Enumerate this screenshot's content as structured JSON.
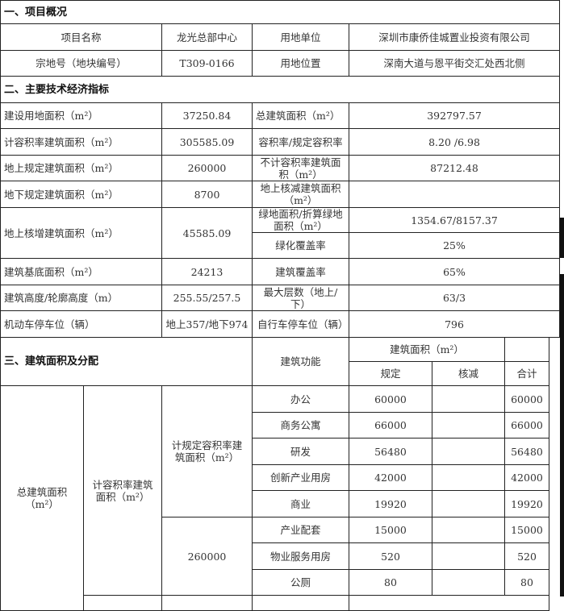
{
  "section1": {
    "title": "一、项目概况",
    "rows": [
      [
        "项目名称",
        "龙光总部中心",
        "用地单位",
        "深圳市康侨佳城置业投资有限公司"
      ],
      [
        "宗地号（地块编号）",
        "T309-0166",
        "用地位置",
        "深南大道与恩平街交汇处西北侧"
      ]
    ]
  },
  "section2": {
    "title": "二、主要技术经济指标",
    "rows": [
      [
        "建设用地面积（m²）",
        "37250.84",
        "总建筑面积（m²）",
        "392797.57"
      ],
      [
        "计容积率建筑面积（m²）",
        "305585.09",
        "容积率/规定容积率",
        "8.20 /6.98"
      ],
      [
        "地上规定建筑面积（m²）",
        "260000",
        "不计容积率建筑面积（m²）",
        "87212.48"
      ],
      [
        "地下规定建筑面积（m²）",
        "8700",
        "地上核减建筑面积（m²）",
        ""
      ],
      [
        "地上核增建筑面积（m²）",
        "45585.09",
        "绿地面积/折算绿地面积（m²）",
        "1354.67/8157.37"
      ],
      [
        "",
        "",
        "绿化覆盖率",
        "25%"
      ],
      [
        "建筑基底面积（m²）",
        "24213",
        "建筑覆盖率",
        "65%"
      ],
      [
        "建筑高度/轮廓高度（m）",
        "255.55/257.5",
        "最大层数（地上/下）",
        "63/3"
      ],
      [
        "机动车停车位（辆）",
        "地上357/地下974",
        "自行车停车位（辆）",
        "796"
      ]
    ]
  },
  "section3": {
    "title": "三、建筑面积及分配",
    "col_function": "建筑功能",
    "col_area": "建筑面积（m²）",
    "col_planned": "规定",
    "col_reduced": "核减",
    "col_total": "合计",
    "group1": "总建筑面积（m²）",
    "group2": "计容积率建筑面积（m²）",
    "group3a": "计规定容积率建筑面积（m²）",
    "group3b": "260000",
    "rows": [
      [
        "办公",
        "60000",
        "",
        "60000"
      ],
      [
        "商务公寓",
        "66000",
        "",
        "66000"
      ],
      [
        "研发",
        "56480",
        "",
        "56480"
      ],
      [
        "创新产业用房",
        "42000",
        "",
        "42000"
      ],
      [
        "商业",
        "19920",
        "",
        "19920"
      ],
      [
        "产业配套",
        "15000",
        "",
        "15000"
      ],
      [
        "物业服务用房",
        "520",
        "",
        "520"
      ],
      [
        "公厕",
        "80",
        "",
        "80"
      ]
    ]
  }
}
